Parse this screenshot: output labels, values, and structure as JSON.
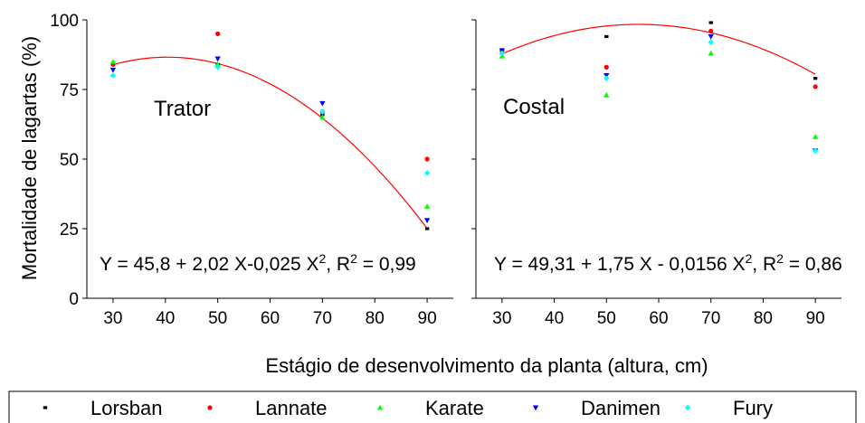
{
  "chart_data": [
    {
      "type": "scatter",
      "panel_label": "Trator",
      "ylabel": "Mortalidade de lagartas (%)",
      "xlabel": "Estágio de desenvolvimento da planta (altura, cm)",
      "xlim": [
        25,
        95
      ],
      "ylim": [
        0,
        100
      ],
      "xticks": [
        "30",
        "40",
        "50",
        "60",
        "70",
        "80",
        "90"
      ],
      "yticks": [
        "0",
        "25",
        "50",
        "75",
        "100"
      ],
      "equation": {
        "prefix": "Y = 45,8 + 2,02 X-0,025 X",
        "sup1": "2",
        "mid": ", R",
        "sup2": "2",
        "suffix": " = 0,99"
      },
      "fit": {
        "a": 45.8,
        "b": 2.02,
        "c": -0.025
      },
      "x": [
        30,
        50,
        70,
        90
      ],
      "series": [
        {
          "name": "Lorsban",
          "values": [
            84,
            84,
            66,
            25
          ]
        },
        {
          "name": "Lannate",
          "values": [
            84,
            95,
            67,
            50
          ]
        },
        {
          "name": "Karate",
          "values": [
            85,
            84,
            65,
            33
          ]
        },
        {
          "name": "Danimen",
          "values": [
            82,
            86,
            70,
            28
          ]
        },
        {
          "name": "Fury",
          "values": [
            80,
            83,
            67,
            45
          ]
        }
      ]
    },
    {
      "type": "scatter",
      "panel_label": "Costal",
      "xlim": [
        25,
        95
      ],
      "ylim": [
        0,
        100
      ],
      "xticks": [
        "30",
        "40",
        "50",
        "60",
        "70",
        "80",
        "90"
      ],
      "equation": {
        "prefix": "Y = 49,31 + 1,75 X - 0,0156 X",
        "sup1": "2",
        "mid": ", R",
        "sup2": "2",
        "suffix": " = 0,86"
      },
      "fit": {
        "a": 49.31,
        "b": 1.75,
        "c": -0.0156
      },
      "x": [
        30,
        50,
        70,
        90
      ],
      "series": [
        {
          "name": "Lorsban",
          "values": [
            88,
            94,
            99,
            79
          ]
        },
        {
          "name": "Lannate",
          "values": [
            89,
            83,
            96,
            76
          ]
        },
        {
          "name": "Karate",
          "values": [
            87,
            73,
            88,
            58
          ]
        },
        {
          "name": "Danimen",
          "values": [
            89,
            80,
            94,
            53
          ]
        },
        {
          "name": "Fury",
          "values": [
            88,
            79,
            92,
            53
          ]
        }
      ]
    }
  ],
  "legend": [
    {
      "name": "Lorsban",
      "color": "#000000",
      "marker": "square"
    },
    {
      "name": "Lannate",
      "color": "#ff0000",
      "marker": "circle"
    },
    {
      "name": "Karate",
      "color": "#00ff00",
      "marker": "triangle-up"
    },
    {
      "name": "Danimen",
      "color": "#0000ff",
      "marker": "triangle-down"
    },
    {
      "name": "Fury",
      "color": "#00ffff",
      "marker": "diamond"
    }
  ],
  "fit_color": "#ff0000"
}
